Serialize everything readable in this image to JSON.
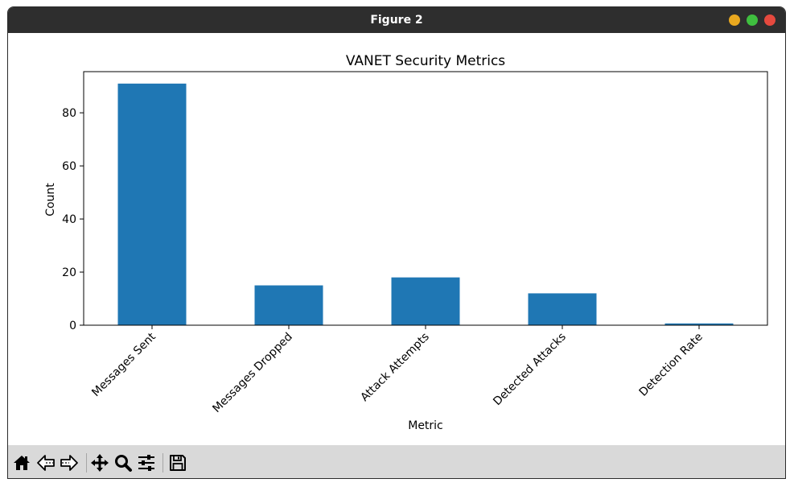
{
  "window": {
    "title": "Figure 2",
    "controls": {
      "minimize_color": "#e9a81f",
      "maximize_color": "#3fbf3f",
      "close_color": "#e5493e"
    }
  },
  "toolbar": {
    "icons": [
      "home-icon",
      "back-icon",
      "forward-icon",
      "pan-icon",
      "zoom-icon",
      "configure-subplots-icon",
      "save-icon"
    ]
  },
  "chart_data": {
    "type": "bar",
    "title": "VANET Security Metrics",
    "xlabel": "Metric",
    "ylabel": "Count",
    "categories": [
      "Messages Sent",
      "Messages Dropped",
      "Attack Attempts",
      "Detected Attacks",
      "Detection Rate"
    ],
    "values": [
      91,
      15,
      18,
      12,
      0.67
    ],
    "ylim": [
      0,
      95.5
    ],
    "yticks": [
      0,
      20,
      40,
      60,
      80
    ],
    "bar_color": "#1f77b4",
    "grid": false,
    "legend": "none"
  }
}
